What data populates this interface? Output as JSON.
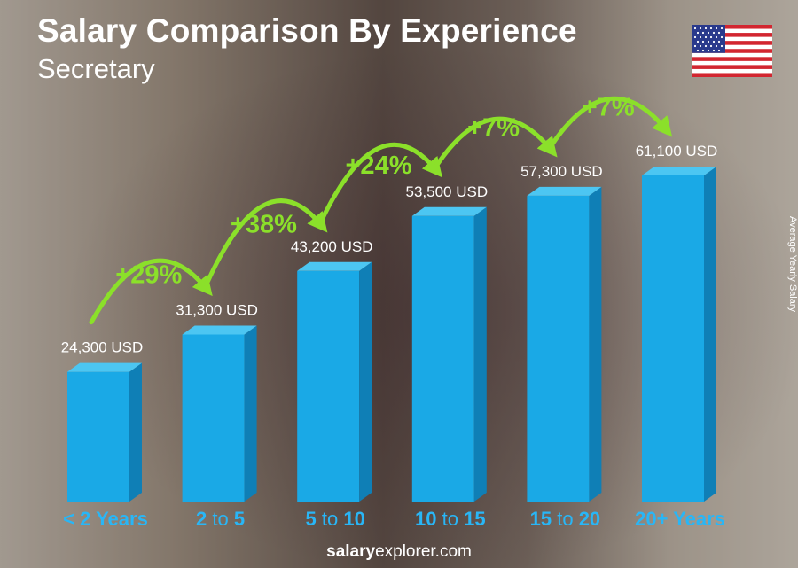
{
  "header": {
    "title": "Salary Comparison By Experience",
    "subtitle": "Secretary"
  },
  "side_label": "Average Yearly Salary",
  "footer": {
    "brand_bold": "salary",
    "brand_rest": "explorer.com"
  },
  "flag": {
    "icon": "us-flag-icon"
  },
  "colors": {
    "bar_front": "#1aa9e6",
    "bar_side": "#0f7fb6",
    "bar_top": "#4cc6f2",
    "accent_green": "#8be02a",
    "label_white": "#ffffff",
    "category_blue": "#29b6f6"
  },
  "chart_data": {
    "type": "bar",
    "categories": [
      {
        "parts": [
          {
            "t": "< 2 Years",
            "b": true
          }
        ]
      },
      {
        "parts": [
          {
            "t": "2",
            "b": true
          },
          {
            "t": " to ",
            "b": false
          },
          {
            "t": "5",
            "b": true
          }
        ]
      },
      {
        "parts": [
          {
            "t": "5",
            "b": true
          },
          {
            "t": " to ",
            "b": false
          },
          {
            "t": "10",
            "b": true
          }
        ]
      },
      {
        "parts": [
          {
            "t": "10",
            "b": true
          },
          {
            "t": " to ",
            "b": false
          },
          {
            "t": "15",
            "b": true
          }
        ]
      },
      {
        "parts": [
          {
            "t": "15",
            "b": true
          },
          {
            "t": " to ",
            "b": false
          },
          {
            "t": "20",
            "b": true
          }
        ]
      },
      {
        "parts": [
          {
            "t": "20+ Years",
            "b": true
          }
        ]
      }
    ],
    "values": [
      24300,
      31300,
      43200,
      53500,
      57300,
      61100
    ],
    "value_labels": [
      "24,300 USD",
      "31,300 USD",
      "43,200 USD",
      "53,500 USD",
      "57,300 USD",
      "61,100 USD"
    ],
    "increases": [
      "+29%",
      "+38%",
      "+24%",
      "+7%",
      "+7%"
    ],
    "ylabel": "Average Yearly Salary"
  }
}
